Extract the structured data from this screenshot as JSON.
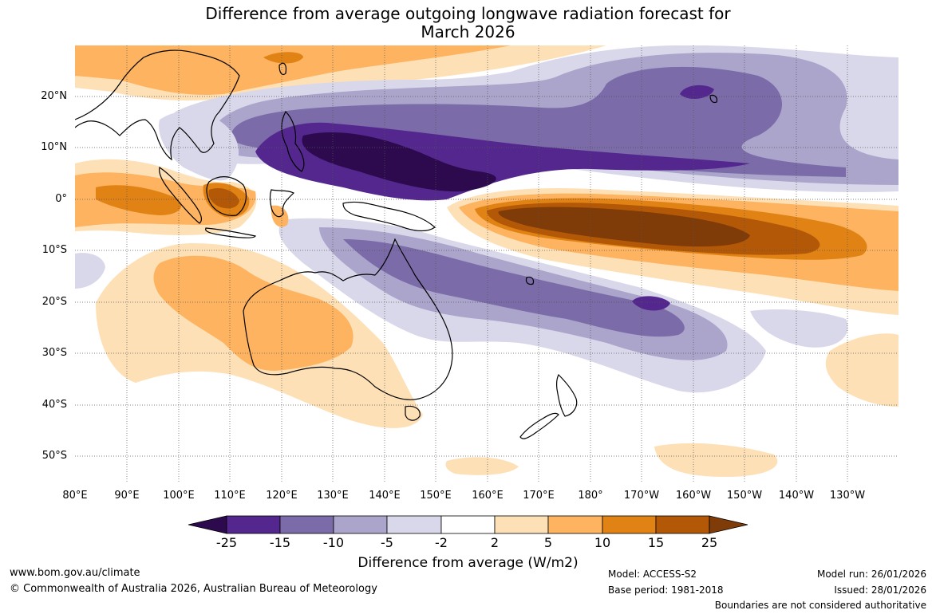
{
  "title": {
    "line1": "Difference from average outgoing longwave radiation forecast for",
    "line2": "March 2026"
  },
  "map": {
    "region": "Western Pacific, Maritime Continent and Australia",
    "lat_labels": [
      "20°N",
      "10°N",
      "0°",
      "10°S",
      "20°S",
      "30°S",
      "40°S",
      "50°S"
    ],
    "lon_labels": [
      "80°E",
      "90°E",
      "100°E",
      "110°E",
      "120°E",
      "130°E",
      "140°E",
      "150°E",
      "160°E",
      "170°E",
      "180°",
      "170°W",
      "160°W",
      "150°W",
      "140°W",
      "130°W"
    ]
  },
  "legend": {
    "title": "Difference from average (W/m2)",
    "ticks": [
      "-25",
      "-15",
      "-10",
      "-5",
      "-2",
      "2",
      "5",
      "10",
      "15",
      "25"
    ],
    "colors": [
      "#2d0a4e",
      "#54278f",
      "#7b6ba8",
      "#aba5cc",
      "#d9d8ea",
      "#ffffff",
      "#fee0b6",
      "#fdb35f",
      "#e08214",
      "#b35806",
      "#7f3b08"
    ]
  },
  "footer": {
    "url": "www.bom.gov.au/climate",
    "copyright": "© Commonwealth of Australia 2026, Australian Bureau of Meteorology",
    "model": "Model: ACCESS-S2",
    "base_period": "Base period: 1981-2018",
    "model_run": "Model run: 26/01/2026",
    "issued": "Issued: 28/01/2026",
    "disclaimer": "Boundaries are not considered authoritative"
  }
}
